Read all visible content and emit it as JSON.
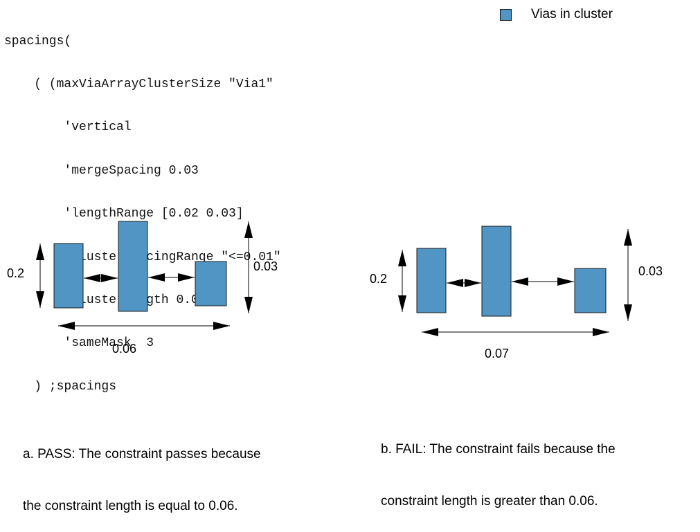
{
  "code": {
    "lines": [
      "spacings(",
      "    ( (maxViaArrayClusterSize \"Via1\"",
      "        'vertical",
      "        'mergeSpacing 0.03",
      "        'lengthRange [0.02 0.03]",
      "        'clusterSpacingRange \"<=0.01\"",
      "        'clusterLength 0.06",
      "        'sameMask  3",
      "    ) ;spacings"
    ]
  },
  "legend": {
    "label": "Vias in cluster",
    "color": "#5195c4"
  },
  "diagram_a": {
    "height_label": "0.2",
    "range_label": "0.03",
    "length_label": "0.06"
  },
  "diagram_b": {
    "height_label": "0.2",
    "range_label": "0.03",
    "length_label": "0.07"
  },
  "captions": {
    "a_line1": "a. PASS: The constraint passes because",
    "a_line2": "the constraint length is equal to 0.06.",
    "b_line1": "b. FAIL: The constraint fails because the",
    "b_line2": "constraint length is greater than 0.06."
  },
  "colors": {
    "via_fill": "#5195c4",
    "via_stroke": "#1a1a1a"
  }
}
